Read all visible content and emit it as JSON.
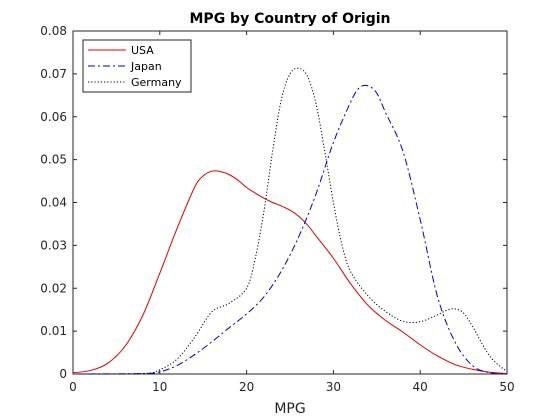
{
  "chart_data": {
    "type": "line",
    "title": "MPG by Country of Origin",
    "xlabel": "MPG",
    "ylabel": "",
    "xlim": [
      0,
      50
    ],
    "ylim": [
      0,
      0.08
    ],
    "x_ticks": [
      0,
      10,
      20,
      30,
      40,
      50
    ],
    "x_tick_labels": [
      "0",
      "10",
      "20",
      "30",
      "40",
      "50"
    ],
    "y_ticks": [
      0,
      0.01,
      0.02,
      0.03,
      0.04,
      0.05,
      0.06,
      0.07,
      0.08
    ],
    "y_tick_labels": [
      "0",
      "0.01",
      "0.02",
      "0.03",
      "0.04",
      "0.05",
      "0.06",
      "0.07",
      "0.08"
    ],
    "grid": false,
    "legend_position": "top-left",
    "series": [
      {
        "name": "USA",
        "color": "#e00000",
        "style": "solid",
        "x": [
          0,
          2,
          4,
          6,
          8,
          10,
          12,
          14,
          15,
          16,
          17,
          18,
          19,
          20,
          21,
          22,
          23,
          24,
          25,
          26,
          27,
          28,
          30,
          32,
          34,
          36,
          38,
          40,
          42,
          44,
          46,
          48,
          50
        ],
        "y": [
          0.0003,
          0.0008,
          0.0025,
          0.0065,
          0.0135,
          0.0235,
          0.034,
          0.0435,
          0.0462,
          0.0473,
          0.0472,
          0.0465,
          0.0452,
          0.0435,
          0.0422,
          0.041,
          0.04,
          0.0392,
          0.0382,
          0.0368,
          0.0348,
          0.0322,
          0.027,
          0.021,
          0.016,
          0.0125,
          0.0098,
          0.0068,
          0.0042,
          0.0022,
          0.0011,
          0.0004,
          0.0001
        ]
      },
      {
        "name": "Japan",
        "color": "#0000cc",
        "style": "dashdot",
        "x": [
          0,
          8,
          10,
          12,
          14,
          16,
          18,
          20,
          22,
          24,
          26,
          28,
          30,
          32,
          33,
          34,
          35,
          36,
          38,
          40,
          42,
          44,
          46,
          48,
          50
        ],
        "y": [
          0,
          0.0001,
          0.0005,
          0.002,
          0.0045,
          0.0075,
          0.0108,
          0.014,
          0.018,
          0.024,
          0.032,
          0.042,
          0.054,
          0.0635,
          0.0668,
          0.0672,
          0.0655,
          0.061,
          0.052,
          0.036,
          0.018,
          0.0075,
          0.002,
          0.0003,
          0
        ]
      },
      {
        "name": "Germany",
        "color": "#000000",
        "style": "dotted",
        "x": [
          0,
          8,
          10,
          12,
          14,
          16,
          18,
          20,
          21,
          22,
          23,
          24,
          25,
          26,
          27,
          28,
          29,
          30,
          31,
          32,
          34,
          36,
          38,
          40,
          42,
          43,
          44,
          45,
          46,
          48,
          50
        ],
        "y": [
          0,
          0.0001,
          0.001,
          0.0035,
          0.0085,
          0.0145,
          0.0165,
          0.02,
          0.027,
          0.038,
          0.052,
          0.064,
          0.07,
          0.0713,
          0.0695,
          0.063,
          0.052,
          0.04,
          0.03,
          0.0238,
          0.0182,
          0.0146,
          0.0123,
          0.0122,
          0.0138,
          0.0148,
          0.0152,
          0.0142,
          0.0112,
          0.0042,
          0.0005
        ]
      }
    ]
  }
}
